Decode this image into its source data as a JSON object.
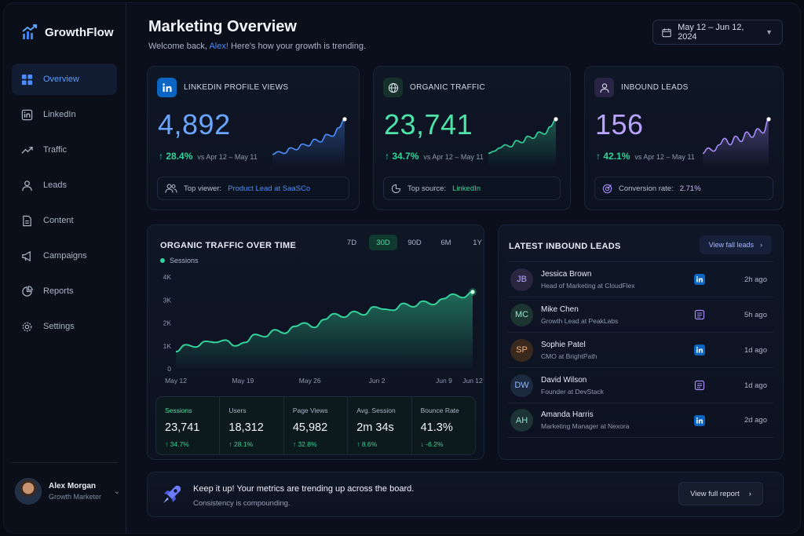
{
  "brand": {
    "name": "GrowthFlow",
    "accent": "#3b82f6"
  },
  "sidebar": {
    "items": [
      {
        "label": "Overview",
        "icon": "grid-icon",
        "active": true
      },
      {
        "label": "LinkedIn",
        "icon": "linkedin-icon"
      },
      {
        "label": "Traffic",
        "icon": "trend-icon"
      },
      {
        "label": "Leads",
        "icon": "user-icon"
      },
      {
        "label": "Content",
        "icon": "document-icon"
      },
      {
        "label": "Campaigns",
        "icon": "megaphone-icon"
      },
      {
        "label": "Reports",
        "icon": "pie-chart-icon"
      },
      {
        "label": "Settings",
        "icon": "gear-icon"
      }
    ],
    "profile": {
      "name": "Alex Morgan",
      "role": "Growth Marketer"
    }
  },
  "header": {
    "title": "Marketing Overview",
    "welcome_prefix": "Welcome back, ",
    "welcome_name": "Alex!",
    "welcome_suffix": " Here's how your growth is trending.",
    "date_range": "May 12 – Jun 12, 2024"
  },
  "kpis": [
    {
      "title": "LINKEDIN PROFILE VIEWS",
      "value": "4,892",
      "delta": "28.4%",
      "compare": "vs Apr 12 – May 11",
      "foot_label": "Top viewer:",
      "foot_value": "Product Lead at SaaSCo",
      "color": "#4d8dff",
      "spark": [
        2,
        2.6,
        2.2,
        3.4,
        3.0,
        4.2,
        3.8,
        5.2,
        4.6,
        6.2,
        5.8,
        7.6,
        9.4
      ]
    },
    {
      "title": "ORGANIC TRAFFIC",
      "value": "23,741",
      "delta": "34.7%",
      "compare": "vs Apr 12 – May 11",
      "foot_label": "Top source:",
      "foot_value": "LinkedIn",
      "color": "#34d399",
      "spark": [
        2,
        2.4,
        3.0,
        3.6,
        3.2,
        4.4,
        4.0,
        5.2,
        4.8,
        6.0,
        5.6,
        7.0,
        8.4
      ]
    },
    {
      "title": "INBOUND LEADS",
      "value": "156",
      "delta": "42.1%",
      "compare": "vs Apr 12 – May 11",
      "foot_label": "Conversion rate:",
      "foot_value": "2.71%",
      "color": "#a78bfa",
      "spark": [
        2,
        3.0,
        2.4,
        3.6,
        4.8,
        3.6,
        5.2,
        4.2,
        6.0,
        5.0,
        6.6,
        5.8,
        8.4
      ]
    }
  ],
  "traffic": {
    "title": "ORGANIC TRAFFIC OVER TIME",
    "ranges": [
      "7D",
      "30D",
      "90D",
      "6M",
      "1Y"
    ],
    "active_range": "30D",
    "stats": [
      {
        "label": "Sessions",
        "value": "23,741",
        "delta": "34.7%",
        "dir": "up"
      },
      {
        "label": "Users",
        "value": "18,312",
        "delta": "28.1%",
        "dir": "up"
      },
      {
        "label": "Page Views",
        "value": "45,982",
        "delta": "32.8%",
        "dir": "up"
      },
      {
        "label": "Avg. Session",
        "value": "2m 34s",
        "delta": "8.6%",
        "dir": "up"
      },
      {
        "label": "Bounce Rate",
        "value": "41.3%",
        "delta": "-6.2%",
        "dir": "down"
      }
    ]
  },
  "chart_data": {
    "type": "area",
    "xlabel": "",
    "ylabel": "",
    "ylim": [
      0,
      4000
    ],
    "yticks": [
      "0",
      "1K",
      "2K",
      "3K",
      "4K"
    ],
    "xticks": [
      "May 12",
      "May 19",
      "May 26",
      "Jun 2",
      "Jun 9",
      "Jun 12"
    ],
    "grid": false,
    "legend": "top-left",
    "series": [
      {
        "name": "Sessions",
        "color": "#34d399",
        "values": [
          750,
          1050,
          950,
          1200,
          1150,
          1250,
          1000,
          1150,
          1500,
          1400,
          1700,
          1550,
          1850,
          2000,
          1800,
          2150,
          2400,
          2250,
          2500,
          2350,
          2700,
          2600,
          2550,
          2850,
          2700,
          2950,
          2800,
          3050,
          3250,
          3100,
          3350
        ]
      }
    ]
  },
  "leads": {
    "title": "LATEST INBOUND LEADS",
    "view_all": "View fall leads",
    "items": [
      {
        "initials": "JB",
        "name": "Jessica Brown",
        "role": "Head of Marketing at CloudFlex",
        "source": "linkedin-icon",
        "time": "2h ago",
        "bg": "#2a2640",
        "fg": "#b8a9ff"
      },
      {
        "initials": "MC",
        "name": "Mike Chen",
        "role": "Growth Lead at PeakLabs",
        "source": "form-icon",
        "time": "5h ago",
        "bg": "#1d3530",
        "fg": "#8fe6c4"
      },
      {
        "initials": "SP",
        "name": "Sophie Patel",
        "role": "CMO at BrightPath",
        "source": "linkedin-icon",
        "time": "1d ago",
        "bg": "#3a2a1e",
        "fg": "#f5b27a"
      },
      {
        "initials": "DW",
        "name": "David Wilson",
        "role": "Founder at DevStack",
        "source": "form-icon",
        "time": "1d ago",
        "bg": "#1c2a3f",
        "fg": "#8fb8ff"
      },
      {
        "initials": "AH",
        "name": "Amanda Harris",
        "role": "Marketing Manager at Nexora",
        "source": "linkedin-icon",
        "time": "2d ago",
        "bg": "#1d3335",
        "fg": "#8fdfd6"
      }
    ]
  },
  "banner": {
    "title": "Keep it up! Your metrics are trending up across the board.",
    "subtitle": "Consistency is compounding.",
    "button": "View full report"
  }
}
